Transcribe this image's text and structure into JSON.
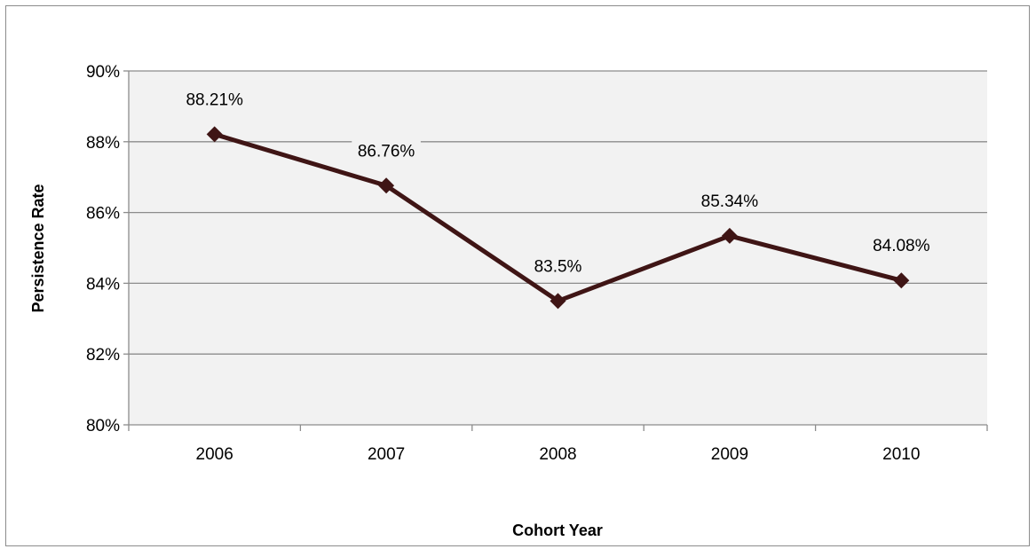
{
  "chart_data": {
    "type": "line",
    "title": "",
    "xlabel": "Cohort Year",
    "ylabel": "Persistence Rate",
    "categories": [
      "2006",
      "2007",
      "2008",
      "2009",
      "2010"
    ],
    "series": [
      {
        "values": [
          88.21,
          86.76,
          83.5,
          85.34,
          84.08
        ],
        "labels": [
          "88.21%",
          "86.76%",
          "83.5%",
          "85.34%",
          "84.08%"
        ]
      }
    ],
    "ylim": [
      80,
      90
    ],
    "yticks": [
      80,
      82,
      84,
      86,
      88,
      90
    ],
    "ytick_labels": [
      "80%",
      "82%",
      "84%",
      "86%",
      "88%",
      "90%"
    ],
    "grid": true,
    "legend": "none",
    "colors": {
      "line": "#3f1515",
      "plot_background": "#f2f2f2",
      "gridline": "#8c8c8c"
    }
  }
}
